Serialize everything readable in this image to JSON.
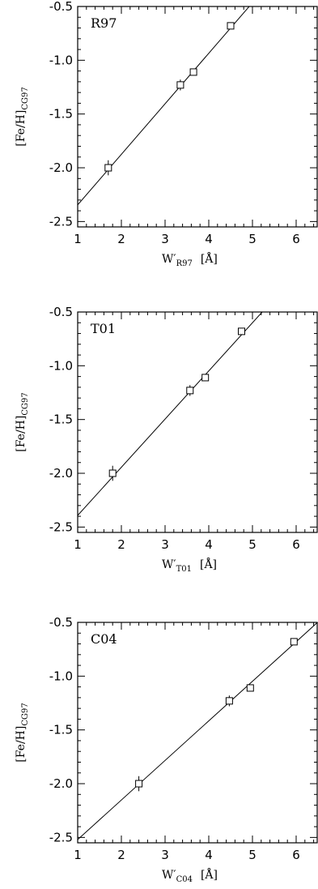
{
  "chart_data": [
    {
      "type": "scatter",
      "panel_label": "R97",
      "xlabel": "W′R97 [Å]",
      "xlabel_main": "W′",
      "xlabel_sub": "R97",
      "xlabel_unit": "[Å]",
      "ylabel": "[Fe/H]CG97",
      "ylabel_main": "[Fe/H]",
      "ylabel_sub": "CG97",
      "xlim": [
        1,
        6.5
      ],
      "ylim": [
        -2.55,
        -0.5
      ],
      "xticks": [
        1,
        2,
        3,
        4,
        5,
        6
      ],
      "yticks": [
        -2.5,
        -2.0,
        -1.5,
        -1.0,
        -0.5
      ],
      "xtick_labels": [
        "1",
        "2",
        "3",
        "4",
        "5",
        "6"
      ],
      "ytick_labels": [
        "-2.5",
        "-2.0",
        "-1.5",
        "-1.0",
        "-0.5"
      ],
      "points": [
        {
          "x": 1.7,
          "y": -2.0,
          "yerr": 0.07
        },
        {
          "x": 3.35,
          "y": -1.23,
          "yerr": 0.05
        },
        {
          "x": 3.65,
          "y": -1.11,
          "yerr": 0.03
        },
        {
          "x": 4.5,
          "y": -0.68,
          "yerr": 0.02
        }
      ],
      "fit_line": {
        "slope": 0.47,
        "intercept": -2.815
      }
    },
    {
      "type": "scatter",
      "panel_label": "T01",
      "xlabel": "W′T01 [Å]",
      "xlabel_main": "W′",
      "xlabel_sub": "T01",
      "xlabel_unit": "[Å]",
      "ylabel": "[Fe/H]CG97",
      "ylabel_main": "[Fe/H]",
      "ylabel_sub": "CG97",
      "xlim": [
        1,
        6.5
      ],
      "ylim": [
        -2.55,
        -0.5
      ],
      "xticks": [
        1,
        2,
        3,
        4,
        5,
        6
      ],
      "yticks": [
        -2.5,
        -2.0,
        -1.5,
        -1.0,
        -0.5
      ],
      "xtick_labels": [
        "1",
        "2",
        "3",
        "4",
        "5",
        "6"
      ],
      "ytick_labels": [
        "-2.5",
        "-2.0",
        "-1.5",
        "-1.0",
        "-0.5"
      ],
      "points": [
        {
          "x": 1.8,
          "y": -2.0,
          "yerr": 0.07
        },
        {
          "x": 3.57,
          "y": -1.23,
          "yerr": 0.05
        },
        {
          "x": 3.92,
          "y": -1.11,
          "yerr": 0.03
        },
        {
          "x": 4.75,
          "y": -0.68,
          "yerr": 0.02
        }
      ],
      "fit_line": {
        "slope": 0.448,
        "intercept": -2.84
      }
    },
    {
      "type": "scatter",
      "panel_label": "C04",
      "xlabel": "W′C04 [Å]",
      "xlabel_main": "W′",
      "xlabel_sub": "C04",
      "xlabel_unit": "[Å]",
      "ylabel": "[Fe/H]CG97",
      "ylabel_main": "[Fe/H]",
      "ylabel_sub": "CG97",
      "xlim": [
        1,
        6.5
      ],
      "ylim": [
        -2.55,
        -0.5
      ],
      "xticks": [
        1,
        2,
        3,
        4,
        5,
        6
      ],
      "yticks": [
        -2.5,
        -2.0,
        -1.5,
        -1.0,
        -0.5
      ],
      "xtick_labels": [
        "1",
        "2",
        "3",
        "4",
        "5",
        "6"
      ],
      "ytick_labels": [
        "-2.5",
        "-2.0",
        "-1.5",
        "-1.0",
        "-0.5"
      ],
      "points": [
        {
          "x": 2.4,
          "y": -2.0,
          "yerr": 0.07
        },
        {
          "x": 4.47,
          "y": -1.23,
          "yerr": 0.05
        },
        {
          "x": 4.95,
          "y": -1.11,
          "yerr": 0.03
        },
        {
          "x": 5.95,
          "y": -0.68,
          "yerr": 0.02
        }
      ],
      "fit_line": {
        "slope": 0.368,
        "intercept": -2.888
      }
    }
  ]
}
